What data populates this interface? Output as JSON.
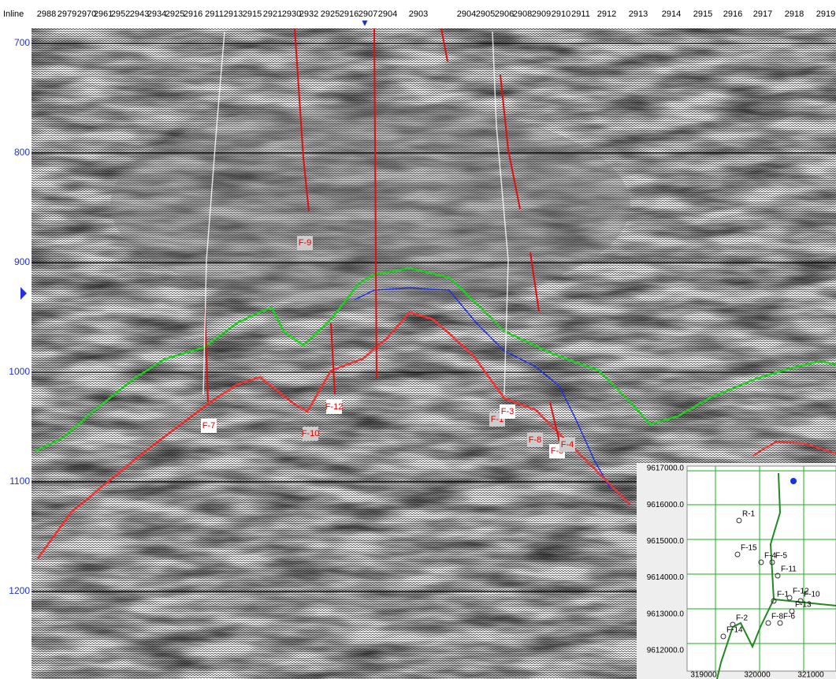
{
  "top_axis": {
    "title": "Inline",
    "labels": [
      "2988",
      "2979",
      "2970",
      "2961",
      "2952",
      "2943",
      "2934",
      "2925",
      "2916",
      "2911",
      "2913",
      "2915",
      "2921",
      "2930",
      "2932",
      "2925",
      "2916",
      "2907",
      "2904",
      "2903",
      "2904",
      "2905",
      "2906",
      "2908",
      "2909",
      "2910",
      "2911",
      "2912",
      "2913",
      "2914",
      "2915",
      "2916",
      "2917",
      "2918",
      "2919"
    ]
  },
  "left_axis": {
    "labels": [
      700,
      800,
      900,
      1000,
      1100,
      1200
    ]
  },
  "faults": [
    "F-9",
    "F-7",
    "F-10",
    "F-12",
    "F-1",
    "F-3",
    "F-8",
    "F-5",
    "F-4"
  ],
  "inset_map": {
    "y_labels": [
      "9617000.0",
      "9616000.0",
      "9615000.0",
      "9614000.0",
      "9613000.0",
      "9612000.0"
    ],
    "x_labels": [
      "319000",
      "320000",
      "321000"
    ],
    "wells": [
      "R-1",
      "F-15",
      "F-4",
      "F-5",
      "F-11",
      "F-1",
      "F-12",
      "F-10",
      "F-13",
      "F-8",
      "F-6",
      "F-2",
      "F-14"
    ]
  }
}
